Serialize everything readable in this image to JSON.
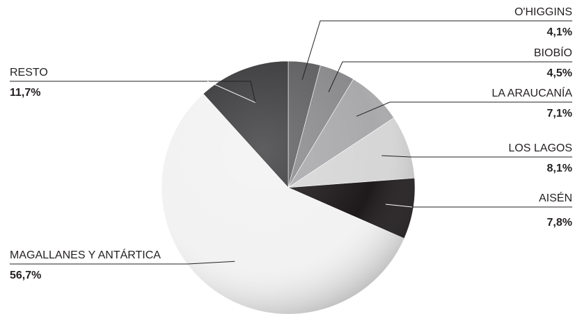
{
  "chart_data": {
    "type": "pie",
    "title": "",
    "slices": [
      {
        "label": "O'HIGGINS",
        "value": 4.1,
        "display": "4,1%",
        "color": "#5f5f61"
      },
      {
        "label": "BIOBÍO",
        "value": 4.5,
        "display": "4,5%",
        "color": "#8a8a8c"
      },
      {
        "label": "LA ARAUCANÍA",
        "value": 7.1,
        "display": "7,1%",
        "color": "#a9a9ab"
      },
      {
        "label": "LOS LAGOS",
        "value": 8.1,
        "display": "8,1%",
        "color": "#d6d6d6"
      },
      {
        "label": "AISÉN",
        "value": 7.8,
        "display": "7,8%",
        "color": "#1e1a1b"
      },
      {
        "label": "MAGALLANES Y ANTÁRTICA",
        "value": 56.7,
        "display": "56,7%",
        "color": "#f2f2f2"
      },
      {
        "label": "RESTO",
        "value": 11.7,
        "display": "11,7%",
        "color": "#3b3b3d"
      }
    ],
    "start_angle_deg": 0,
    "direction": "clockwise",
    "legend": "none",
    "data_labels": "outside with leader lines"
  }
}
